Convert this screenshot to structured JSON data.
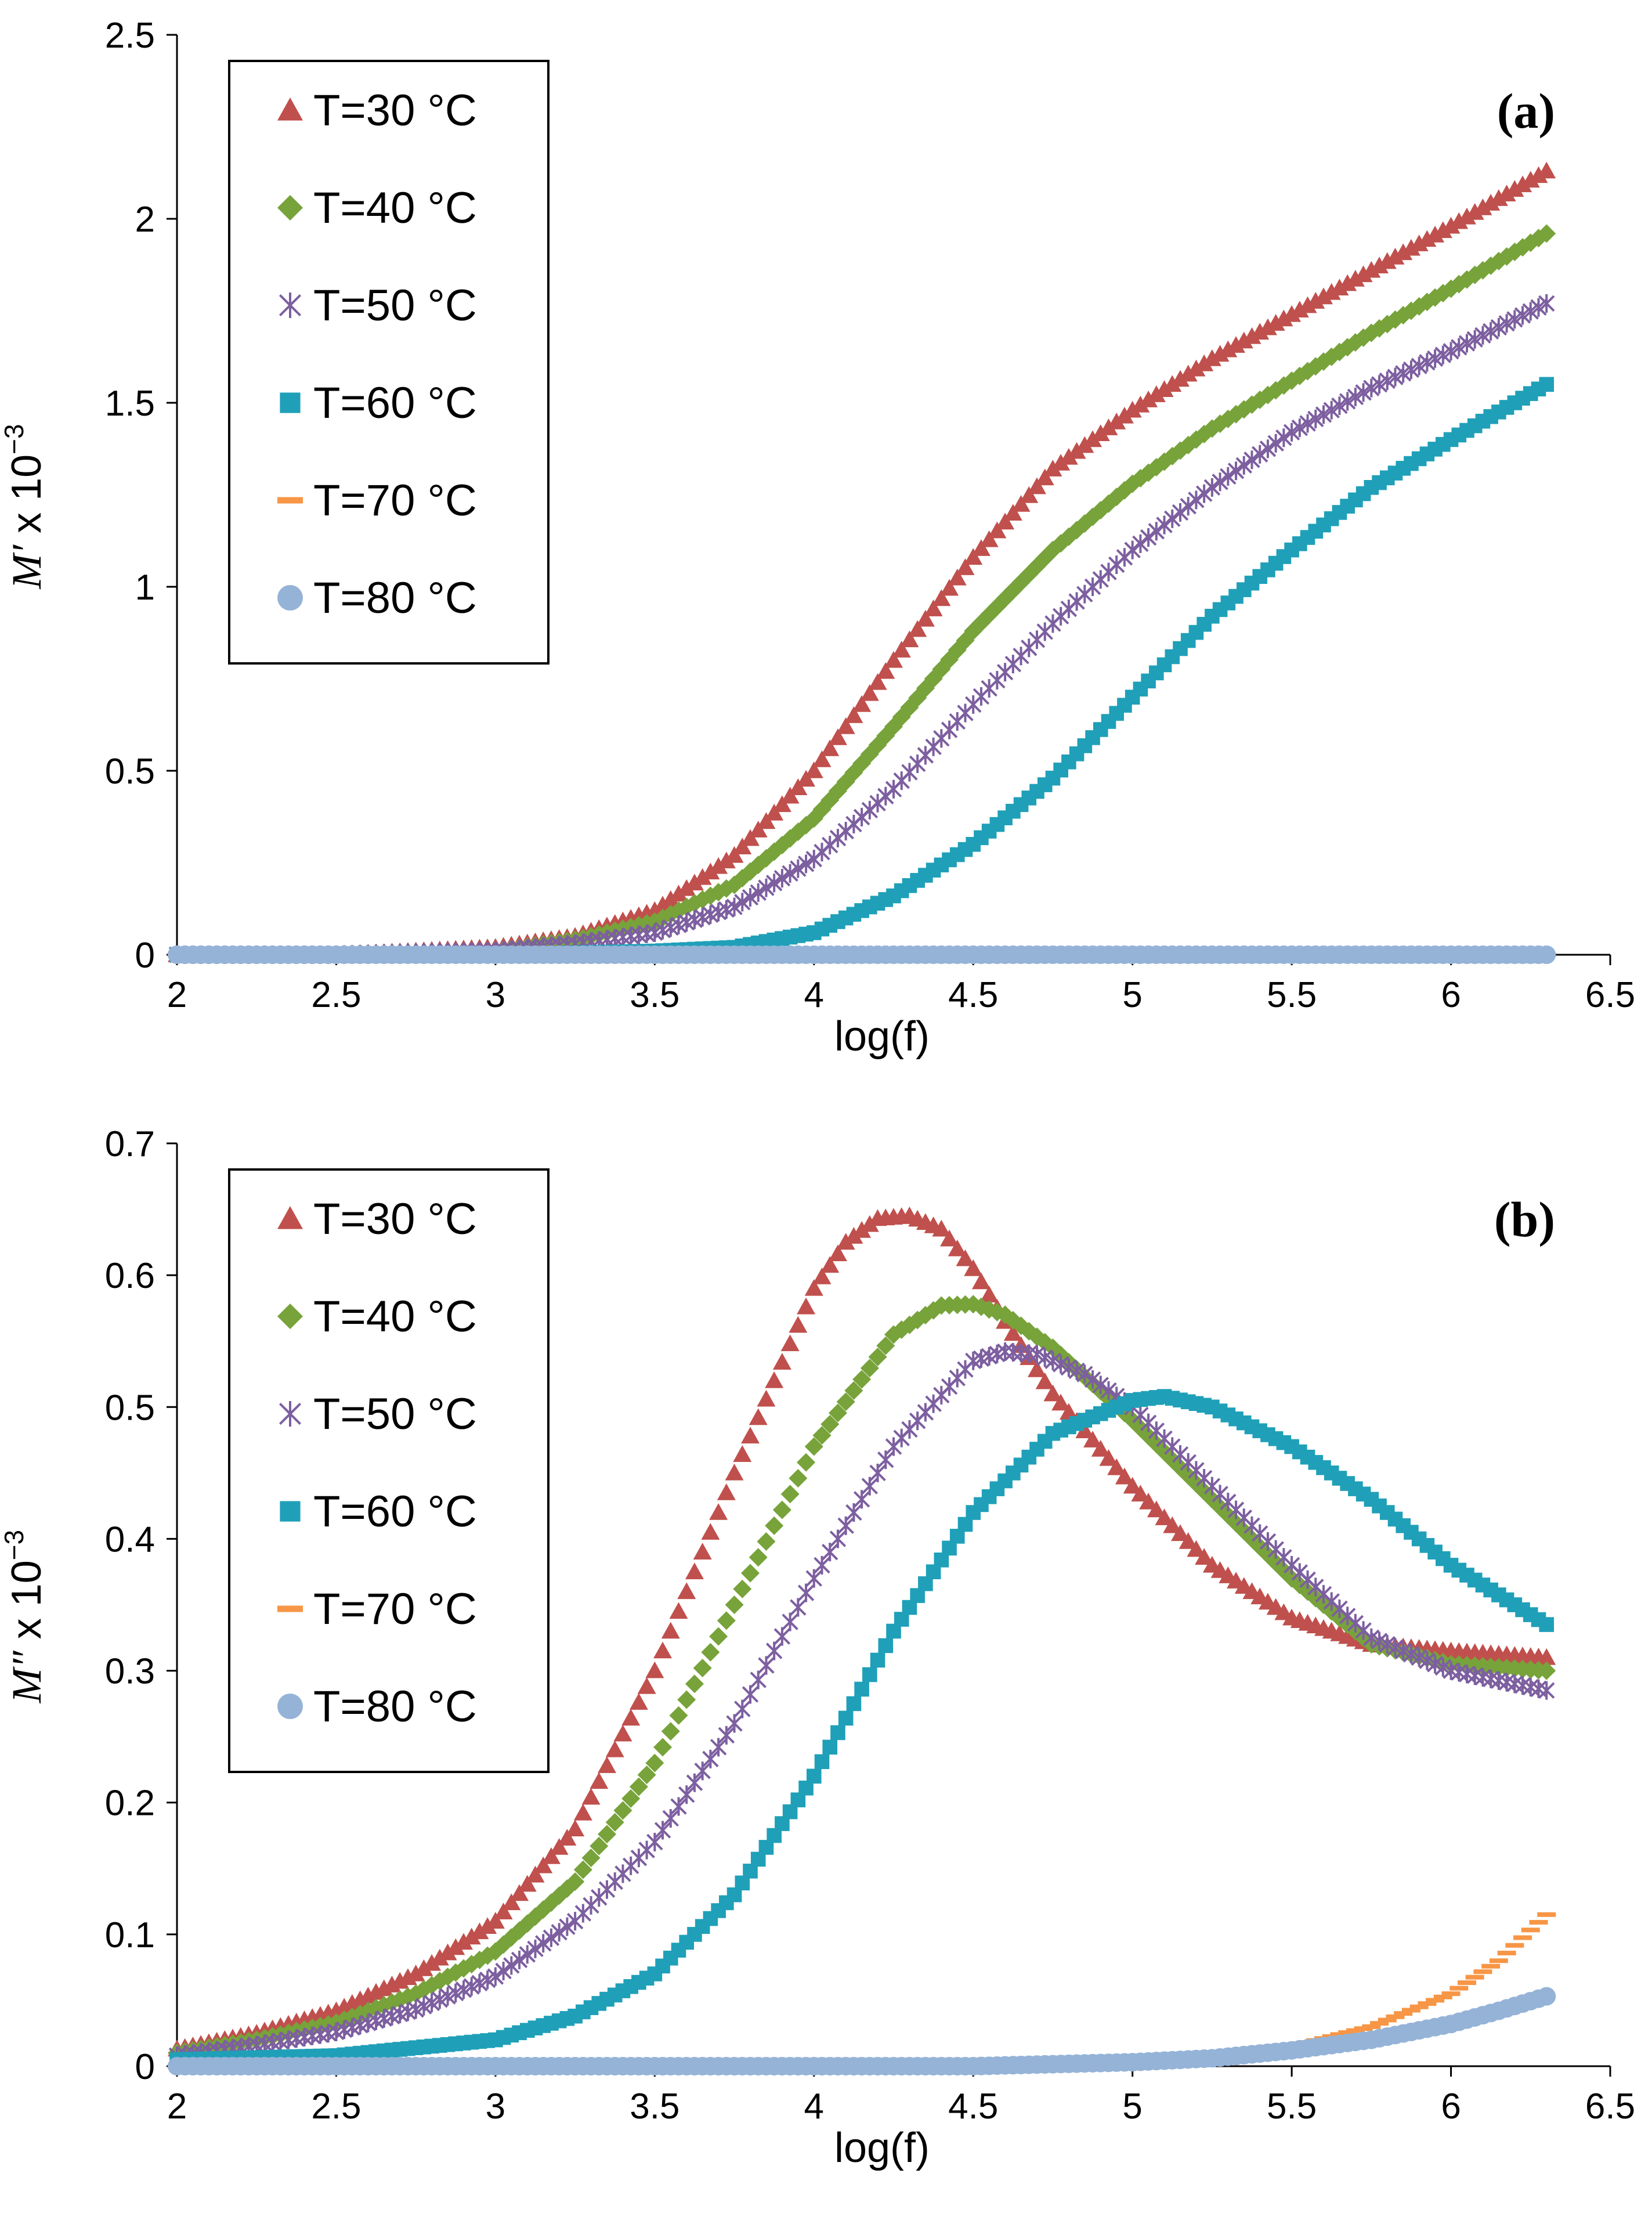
{
  "colors": {
    "T30": "#C0504D",
    "T40": "#77A33A",
    "T50": "#7D5FA0",
    "T60": "#1FA0B8",
    "T70": "#F79646",
    "T80": "#95B3D7"
  },
  "chart_data": [
    {
      "type": "scatter",
      "panel_label": "(a)",
      "title": "",
      "xlabel": "log(f)",
      "ylabel_italic": "M′",
      "ylabel_rest": " x 10",
      "ylabel_exp": "−3",
      "xlim": [
        2,
        6.5
      ],
      "ylim": [
        0,
        2.5
      ],
      "xticks": [
        2,
        2.5,
        3,
        3.5,
        4,
        4.5,
        5,
        5.5,
        6,
        6.5
      ],
      "yticks": [
        0,
        0.5,
        1,
        1.5,
        2,
        2.5
      ],
      "xtick_labels": [
        "2",
        "2.5",
        "3",
        "3.5",
        "4",
        "4.5",
        "5",
        "5.5",
        "6",
        "6.5"
      ],
      "ytick_labels": [
        "0",
        "0.5",
        "1",
        "1.5",
        "2",
        "2.5"
      ],
      "legend_position": "top-left",
      "series": [
        {
          "name": "T=30 °C",
          "marker": "triangle",
          "color_key": "T30",
          "x": [
            2.0,
            2.5,
            3.0,
            3.25,
            3.5,
            3.75,
            4.0,
            4.25,
            4.5,
            4.75,
            5.0,
            5.25,
            5.5,
            5.75,
            6.0,
            6.3
          ],
          "y": [
            0.0,
            0.0,
            0.02,
            0.05,
            0.12,
            0.27,
            0.5,
            0.8,
            1.08,
            1.32,
            1.48,
            1.62,
            1.74,
            1.86,
            1.98,
            2.13
          ]
        },
        {
          "name": "T=40 °C",
          "marker": "diamond",
          "color_key": "T40",
          "x": [
            2.0,
            2.5,
            3.0,
            3.25,
            3.5,
            3.75,
            4.0,
            4.25,
            4.5,
            4.75,
            5.0,
            5.25,
            5.5,
            5.75,
            6.0,
            6.3
          ],
          "y": [
            0.0,
            0.0,
            0.01,
            0.04,
            0.09,
            0.19,
            0.37,
            0.62,
            0.88,
            1.1,
            1.28,
            1.43,
            1.56,
            1.69,
            1.81,
            1.96
          ]
        },
        {
          "name": "T=50 °C",
          "marker": "star",
          "color_key": "T50",
          "x": [
            2.0,
            2.5,
            3.0,
            3.25,
            3.5,
            3.75,
            4.0,
            4.25,
            4.5,
            4.75,
            5.0,
            5.25,
            5.5,
            5.75,
            6.0,
            6.3
          ],
          "y": [
            0.0,
            0.0,
            0.01,
            0.03,
            0.06,
            0.13,
            0.26,
            0.45,
            0.68,
            0.9,
            1.1,
            1.27,
            1.42,
            1.54,
            1.64,
            1.77
          ]
        },
        {
          "name": "T=60 °C",
          "marker": "square",
          "color_key": "T60",
          "x": [
            2.0,
            2.5,
            3.0,
            3.5,
            3.75,
            4.0,
            4.25,
            4.5,
            4.75,
            5.0,
            5.25,
            5.5,
            5.75,
            6.0,
            6.3
          ],
          "y": [
            0.0,
            0.0,
            0.0,
            0.01,
            0.02,
            0.06,
            0.16,
            0.3,
            0.48,
            0.7,
            0.92,
            1.1,
            1.27,
            1.4,
            1.55
          ]
        },
        {
          "name": "T=70 °C",
          "marker": "dash",
          "color_key": "T70",
          "x": [
            2.0,
            3.0,
            4.0,
            5.0,
            6.0,
            6.3
          ],
          "y": [
            0.0,
            0.0,
            0.0,
            0.0,
            0.0,
            0.0
          ]
        },
        {
          "name": "T=80 °C",
          "marker": "circle",
          "color_key": "T80",
          "x": [
            2.0,
            3.0,
            4.0,
            5.0,
            6.0,
            6.3
          ],
          "y": [
            0.0,
            0.0,
            0.0,
            0.0,
            0.0,
            0.0
          ]
        }
      ]
    },
    {
      "type": "scatter",
      "panel_label": "(b)",
      "title": "",
      "xlabel": "log(f)",
      "ylabel_italic": "M″",
      "ylabel_rest": " x 10",
      "ylabel_exp": "−3",
      "xlim": [
        2,
        6.5
      ],
      "ylim": [
        0,
        0.7
      ],
      "xticks": [
        2,
        2.5,
        3,
        3.5,
        4,
        4.5,
        5,
        5.5,
        6,
        6.5
      ],
      "yticks": [
        0,
        0.1,
        0.2,
        0.3,
        0.4,
        0.5,
        0.6,
        0.7
      ],
      "xtick_labels": [
        "2",
        "2.5",
        "3",
        "3.5",
        "4",
        "4.5",
        "5",
        "5.5",
        "6",
        "6.5"
      ],
      "ytick_labels": [
        "0",
        "0.1",
        "0.2",
        "0.3",
        "0.4",
        "0.5",
        "0.6",
        "0.7"
      ],
      "legend_position": "top-left",
      "series": [
        {
          "name": "T=30 °C",
          "marker": "triangle",
          "color_key": "T30",
          "x": [
            2.0,
            2.25,
            2.5,
            2.75,
            3.0,
            3.25,
            3.5,
            3.75,
            4.0,
            4.1,
            4.2,
            4.3,
            4.4,
            4.5,
            4.6,
            4.75,
            5.0,
            5.25,
            5.5,
            5.75,
            6.0,
            6.3
          ],
          "y": [
            0.013,
            0.025,
            0.042,
            0.07,
            0.11,
            0.18,
            0.3,
            0.45,
            0.59,
            0.625,
            0.643,
            0.645,
            0.635,
            0.605,
            0.565,
            0.51,
            0.44,
            0.38,
            0.34,
            0.32,
            0.315,
            0.31
          ]
        },
        {
          "name": "T=40 °C",
          "marker": "diamond",
          "color_key": "T40",
          "x": [
            2.0,
            2.25,
            2.5,
            2.75,
            3.0,
            3.25,
            3.5,
            3.75,
            4.0,
            4.25,
            4.4,
            4.5,
            4.6,
            4.75,
            5.0,
            5.25,
            5.5,
            5.75,
            6.0,
            6.3
          ],
          "y": [
            0.01,
            0.02,
            0.033,
            0.055,
            0.087,
            0.14,
            0.23,
            0.35,
            0.47,
            0.555,
            0.577,
            0.578,
            0.57,
            0.545,
            0.49,
            0.43,
            0.37,
            0.32,
            0.305,
            0.3
          ]
        },
        {
          "name": "T=50 °C",
          "marker": "star",
          "color_key": "T50",
          "x": [
            2.0,
            2.25,
            2.5,
            2.75,
            3.0,
            3.25,
            3.5,
            3.75,
            4.0,
            4.25,
            4.5,
            4.6,
            4.7,
            4.85,
            5.0,
            5.25,
            5.5,
            5.75,
            6.0,
            6.3
          ],
          "y": [
            0.008,
            0.016,
            0.026,
            0.043,
            0.068,
            0.11,
            0.17,
            0.26,
            0.37,
            0.47,
            0.535,
            0.542,
            0.54,
            0.525,
            0.5,
            0.44,
            0.38,
            0.325,
            0.3,
            0.285
          ]
        },
        {
          "name": "T=60 °C",
          "marker": "square",
          "color_key": "T60",
          "x": [
            2.0,
            2.5,
            3.0,
            3.25,
            3.5,
            3.75,
            4.0,
            4.25,
            4.5,
            4.75,
            5.0,
            5.1,
            5.25,
            5.5,
            5.75,
            6.0,
            6.3
          ],
          "y": [
            0.005,
            0.008,
            0.02,
            0.038,
            0.07,
            0.13,
            0.22,
            0.33,
            0.42,
            0.48,
            0.505,
            0.508,
            0.5,
            0.47,
            0.43,
            0.38,
            0.335
          ]
        },
        {
          "name": "T=70 °C",
          "marker": "dash",
          "color_key": "T70",
          "x": [
            2.0,
            3.0,
            4.0,
            4.5,
            5.0,
            5.25,
            5.5,
            5.75,
            6.0,
            6.15,
            6.3
          ],
          "y": [
            0.0,
            0.0,
            0.0,
            0.001,
            0.004,
            0.008,
            0.015,
            0.03,
            0.055,
            0.08,
            0.115
          ]
        },
        {
          "name": "T=80 °C",
          "marker": "circle",
          "color_key": "T80",
          "x": [
            2.0,
            3.0,
            4.0,
            4.5,
            5.0,
            5.25,
            5.5,
            5.75,
            6.0,
            6.15,
            6.3
          ],
          "y": [
            0.0,
            0.0,
            0.0,
            0.0,
            0.003,
            0.006,
            0.012,
            0.02,
            0.032,
            0.042,
            0.053
          ]
        }
      ]
    }
  ]
}
